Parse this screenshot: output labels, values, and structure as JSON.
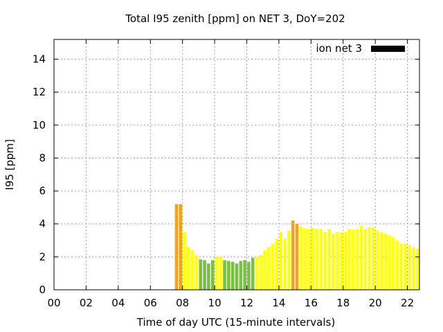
{
  "chart_data": {
    "type": "bar",
    "title": "Total I95 zenith [ppm] on NET 3, DoY=202",
    "xlabel": "Time of day UTC (15-minute intervals)",
    "ylabel": "I95 [ppm]",
    "xlim": [
      0,
      22.75
    ],
    "ylim": [
      0,
      15.2
    ],
    "x_ticks": [
      "00",
      "02",
      "04",
      "06",
      "08",
      "10",
      "12",
      "14",
      "16",
      "18",
      "20",
      "22"
    ],
    "y_ticks": [
      "0",
      "2",
      "4",
      "6",
      "8",
      "10",
      "12",
      "14"
    ],
    "grid": true,
    "legend": {
      "position": "top-right",
      "entries": [
        {
          "label": "ion net 3",
          "color": "#000000"
        }
      ]
    },
    "colors": {
      "green": "#7ac143",
      "yellow": "#ffff1a",
      "orange": "#f0a41e"
    },
    "interval_hours": 0.25,
    "bars": [
      {
        "x": 7.5,
        "value": 5.2,
        "color": "orange"
      },
      {
        "x": 7.75,
        "value": 5.2,
        "color": "orange"
      },
      {
        "x": 8.0,
        "value": 3.5,
        "color": "yellow"
      },
      {
        "x": 8.25,
        "value": 2.6,
        "color": "yellow"
      },
      {
        "x": 8.5,
        "value": 2.4,
        "color": "yellow"
      },
      {
        "x": 8.75,
        "value": 2.1,
        "color": "yellow"
      },
      {
        "x": 9.0,
        "value": 1.85,
        "color": "green"
      },
      {
        "x": 9.25,
        "value": 1.8,
        "color": "green"
      },
      {
        "x": 9.5,
        "value": 1.6,
        "color": "green"
      },
      {
        "x": 9.75,
        "value": 1.8,
        "color": "green"
      },
      {
        "x": 10.0,
        "value": 2.0,
        "color": "yellow"
      },
      {
        "x": 10.25,
        "value": 2.0,
        "color": "yellow"
      },
      {
        "x": 10.5,
        "value": 1.8,
        "color": "green"
      },
      {
        "x": 10.75,
        "value": 1.75,
        "color": "green"
      },
      {
        "x": 11.0,
        "value": 1.7,
        "color": "green"
      },
      {
        "x": 11.25,
        "value": 1.6,
        "color": "green"
      },
      {
        "x": 11.5,
        "value": 1.75,
        "color": "green"
      },
      {
        "x": 11.75,
        "value": 1.8,
        "color": "green"
      },
      {
        "x": 12.0,
        "value": 1.7,
        "color": "green"
      },
      {
        "x": 12.25,
        "value": 1.95,
        "color": "green"
      },
      {
        "x": 12.5,
        "value": 2.0,
        "color": "yellow"
      },
      {
        "x": 12.75,
        "value": 2.1,
        "color": "yellow"
      },
      {
        "x": 13.0,
        "value": 2.4,
        "color": "yellow"
      },
      {
        "x": 13.25,
        "value": 2.6,
        "color": "yellow"
      },
      {
        "x": 13.5,
        "value": 2.8,
        "color": "yellow"
      },
      {
        "x": 13.75,
        "value": 3.1,
        "color": "yellow"
      },
      {
        "x": 14.0,
        "value": 3.5,
        "color": "yellow"
      },
      {
        "x": 14.25,
        "value": 3.1,
        "color": "yellow"
      },
      {
        "x": 14.5,
        "value": 3.6,
        "color": "yellow"
      },
      {
        "x": 14.75,
        "value": 4.2,
        "color": "orange"
      },
      {
        "x": 15.0,
        "value": 4.0,
        "color": "orange"
      },
      {
        "x": 15.25,
        "value": 3.85,
        "color": "yellow"
      },
      {
        "x": 15.5,
        "value": 3.75,
        "color": "yellow"
      },
      {
        "x": 15.75,
        "value": 3.7,
        "color": "yellow"
      },
      {
        "x": 16.0,
        "value": 3.75,
        "color": "yellow"
      },
      {
        "x": 16.25,
        "value": 3.7,
        "color": "yellow"
      },
      {
        "x": 16.5,
        "value": 3.7,
        "color": "yellow"
      },
      {
        "x": 16.75,
        "value": 3.5,
        "color": "yellow"
      },
      {
        "x": 17.0,
        "value": 3.7,
        "color": "yellow"
      },
      {
        "x": 17.25,
        "value": 3.4,
        "color": "yellow"
      },
      {
        "x": 17.5,
        "value": 3.5,
        "color": "yellow"
      },
      {
        "x": 17.75,
        "value": 3.5,
        "color": "yellow"
      },
      {
        "x": 18.0,
        "value": 3.5,
        "color": "yellow"
      },
      {
        "x": 18.25,
        "value": 3.7,
        "color": "yellow"
      },
      {
        "x": 18.5,
        "value": 3.65,
        "color": "yellow"
      },
      {
        "x": 18.75,
        "value": 3.7,
        "color": "yellow"
      },
      {
        "x": 19.0,
        "value": 3.9,
        "color": "yellow"
      },
      {
        "x": 19.25,
        "value": 3.7,
        "color": "yellow"
      },
      {
        "x": 19.5,
        "value": 3.8,
        "color": "yellow"
      },
      {
        "x": 19.75,
        "value": 3.8,
        "color": "yellow"
      },
      {
        "x": 20.0,
        "value": 3.6,
        "color": "yellow"
      },
      {
        "x": 20.25,
        "value": 3.5,
        "color": "yellow"
      },
      {
        "x": 20.5,
        "value": 3.4,
        "color": "yellow"
      },
      {
        "x": 20.75,
        "value": 3.3,
        "color": "yellow"
      },
      {
        "x": 21.0,
        "value": 3.2,
        "color": "yellow"
      },
      {
        "x": 21.25,
        "value": 3.0,
        "color": "yellow"
      },
      {
        "x": 21.5,
        "value": 2.8,
        "color": "yellow"
      },
      {
        "x": 21.75,
        "value": 2.8,
        "color": "yellow"
      },
      {
        "x": 22.0,
        "value": 2.7,
        "color": "yellow"
      },
      {
        "x": 22.25,
        "value": 2.6,
        "color": "yellow"
      },
      {
        "x": 22.5,
        "value": 2.5,
        "color": "yellow"
      }
    ]
  }
}
